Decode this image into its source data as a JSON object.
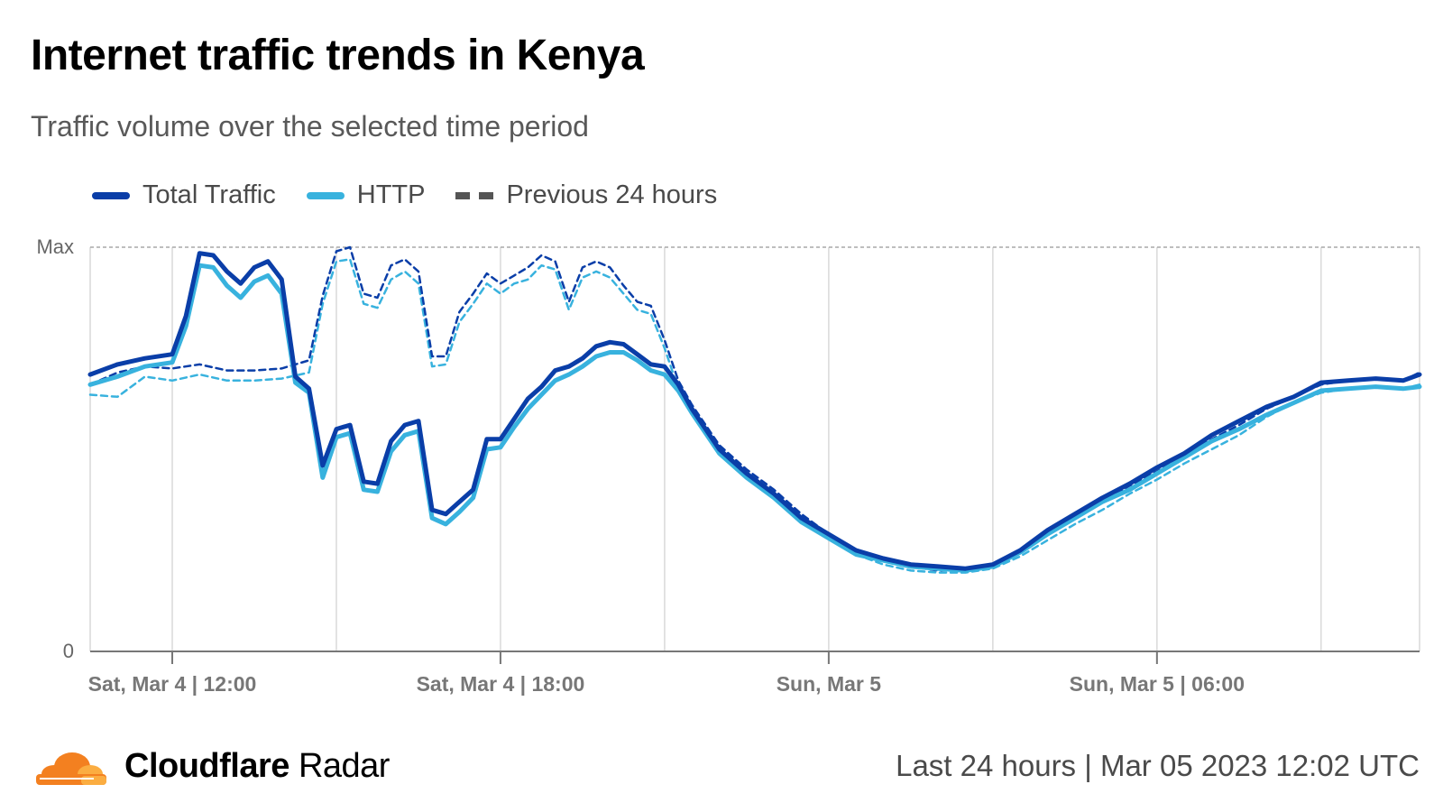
{
  "header": {
    "title": "Internet traffic trends in Kenya",
    "subtitle": "Traffic volume over the selected time period"
  },
  "footer": {
    "brand_bold": "Cloudflare",
    "brand_rest": " Radar",
    "period": "Last 24 hours | Mar 05 2023 12:02 UTC"
  },
  "colors": {
    "total": "#0a3ea8",
    "http": "#38b2de",
    "previous": "#555555",
    "grid": "#d9d9d9",
    "axis": "#777777",
    "logo_dark": "#f38020",
    "logo_light": "#fbad41"
  },
  "chart_data": {
    "type": "line",
    "legend_position": "top-left",
    "grid": true,
    "y_tick_labels": [
      "0",
      "Max"
    ],
    "ylim": [
      0,
      100
    ],
    "x_tick_labels": [
      "Sat, Mar 4 | 12:00",
      "Sat, Mar 4 | 18:00",
      "Sun, Mar 5",
      "Sun, Mar 5 | 06:00"
    ],
    "x_tick_hours": [
      0,
      6,
      12,
      18
    ],
    "xlim": [
      -1.5,
      22.8
    ],
    "series": [
      {
        "name": "Total Traffic",
        "key": "total",
        "hours": [
          -1.5,
          -1,
          -0.5,
          0,
          0.25,
          0.5,
          0.75,
          1,
          1.25,
          1.5,
          1.75,
          2,
          2.25,
          2.5,
          2.75,
          3,
          3.25,
          3.5,
          3.75,
          4,
          4.25,
          4.5,
          4.75,
          5,
          5.25,
          5.5,
          5.75,
          6,
          6.25,
          6.5,
          6.75,
          7,
          7.25,
          7.5,
          7.75,
          8,
          8.25,
          8.5,
          8.75,
          9,
          9.25,
          9.5,
          9.75,
          10,
          10.5,
          11,
          11.5,
          12,
          12.5,
          13,
          13.5,
          14,
          14.5,
          15,
          15.5,
          16,
          16.5,
          17,
          17.5,
          18,
          18.5,
          19,
          19.5,
          20,
          20.5,
          21,
          21.5,
          22,
          22.5,
          22.8
        ],
        "values": [
          68.5,
          71,
          72.5,
          73.5,
          83,
          98.5,
          98,
          94,
          91,
          95,
          96.5,
          92,
          68,
          65,
          46,
          55,
          56,
          42,
          41.5,
          52,
          56,
          57,
          35,
          34,
          37,
          40,
          52.5,
          52.5,
          57.5,
          62.5,
          65.5,
          69.5,
          70.5,
          72.5,
          75.5,
          76.5,
          76,
          73.5,
          71,
          70.5,
          66,
          60,
          55,
          50,
          44,
          39,
          33,
          29,
          25,
          23,
          21.5,
          21,
          20.5,
          21.5,
          25,
          30,
          34,
          38,
          41.5,
          45.5,
          49,
          53.5,
          57,
          60.5,
          63,
          66.5,
          67,
          67.5,
          67,
          68.5
        ]
      },
      {
        "name": "HTTP",
        "key": "http",
        "hours": [
          -1.5,
          -1,
          -0.5,
          0,
          0.25,
          0.5,
          0.75,
          1,
          1.25,
          1.5,
          1.75,
          2,
          2.25,
          2.5,
          2.75,
          3,
          3.25,
          3.5,
          3.75,
          4,
          4.25,
          4.5,
          4.75,
          5,
          5.25,
          5.5,
          5.75,
          6,
          6.25,
          6.5,
          6.75,
          7,
          7.25,
          7.5,
          7.75,
          8,
          8.25,
          8.5,
          8.75,
          9,
          9.25,
          9.5,
          9.75,
          10,
          10.5,
          11,
          11.5,
          12,
          12.5,
          13,
          13.5,
          14,
          14.5,
          15,
          15.5,
          16,
          16.5,
          17,
          17.5,
          18,
          18.5,
          19,
          19.5,
          20,
          20.5,
          21,
          21.5,
          22,
          22.5,
          22.8
        ],
        "values": [
          66,
          68,
          70.5,
          71.5,
          80.5,
          95.5,
          95,
          90.5,
          87.5,
          91.5,
          93,
          88.5,
          66.5,
          64,
          43,
          53,
          54,
          40,
          39.5,
          49.5,
          53.5,
          54.5,
          33,
          31.5,
          34.5,
          38,
          50,
          50.5,
          55.5,
          60,
          63.5,
          67,
          68.5,
          70.5,
          73,
          74,
          74,
          72,
          69.5,
          68.5,
          64.5,
          59,
          54,
          49,
          43,
          38,
          32,
          28,
          24,
          22.5,
          21,
          20.5,
          20,
          21,
          24.5,
          29,
          33,
          37,
          40,
          44,
          48,
          52,
          55,
          58.5,
          61.5,
          64.5,
          65,
          65.5,
          65,
          65.5
        ]
      },
      {
        "name": "Previous 24 hours",
        "key": "prev_total",
        "hours": [
          -1.5,
          -1,
          -0.5,
          0,
          0.5,
          1,
          1.5,
          2,
          2.5,
          2.75,
          3,
          3.25,
          3.5,
          3.75,
          4,
          4.25,
          4.5,
          4.75,
          5,
          5.25,
          5.5,
          5.75,
          6,
          6.25,
          6.5,
          6.75,
          7,
          7.25,
          7.5,
          7.75,
          8,
          8.25,
          8.5,
          8.75,
          9,
          9.25,
          9.5,
          9.75,
          10,
          10.5,
          11,
          11.5,
          12,
          12.5,
          13,
          13.5,
          14,
          14.5,
          15,
          15.5,
          16,
          16.5,
          17,
          17.5,
          18,
          18.5,
          19,
          19.5,
          20,
          20.5,
          21,
          21.5,
          22,
          22.5,
          22.8
        ],
        "values": [
          66,
          69,
          70.5,
          70,
          71,
          69.5,
          69.5,
          70,
          72,
          88,
          99,
          100,
          88.5,
          87.5,
          95.5,
          97,
          94,
          73,
          73,
          84,
          88.5,
          93.5,
          91,
          93,
          95,
          98,
          96.5,
          86.5,
          95,
          96.5,
          95,
          90.5,
          86.5,
          85.5,
          77,
          67,
          61,
          56,
          51,
          45,
          40,
          34,
          29,
          25,
          22.5,
          21,
          20,
          20.5,
          21.5,
          25,
          29,
          33,
          37,
          41,
          44.5,
          48.5,
          52.5,
          56,
          60,
          63,
          66,
          67,
          67.5,
          67,
          69
        ]
      },
      {
        "name": "Previous 24 hours",
        "key": "prev_http",
        "hours": [
          -1.5,
          -1,
          -0.5,
          0,
          0.5,
          1,
          1.5,
          2,
          2.5,
          2.75,
          3,
          3.25,
          3.5,
          3.75,
          4,
          4.25,
          4.5,
          4.75,
          5,
          5.25,
          5.5,
          5.75,
          6,
          6.25,
          6.5,
          6.75,
          7,
          7.25,
          7.5,
          7.75,
          8,
          8.25,
          8.5,
          8.75,
          9,
          9.25,
          9.5,
          9.75,
          10,
          10.5,
          11,
          11.5,
          12,
          12.5,
          13,
          13.5,
          14,
          14.5,
          15,
          15.5,
          16,
          16.5,
          17,
          17.5,
          18,
          18.5,
          19,
          19.5,
          20,
          20.5,
          21,
          21.5,
          22,
          22.5,
          22.8
        ],
        "values": [
          63.5,
          63,
          68,
          67,
          68.5,
          67,
          67,
          67.5,
          69,
          86,
          96.5,
          97,
          86,
          85,
          92,
          94,
          91,
          70.5,
          71,
          81.5,
          86,
          91,
          88.5,
          91,
          92,
          95.5,
          94.5,
          84.5,
          92.5,
          94,
          92.5,
          88.5,
          84.5,
          83.5,
          75,
          65,
          59,
          54,
          49.5,
          43.5,
          38.5,
          32.5,
          28,
          24,
          21.5,
          20,
          19.5,
          19.5,
          20.5,
          23.5,
          27.5,
          31.5,
          35,
          39,
          42.5,
          46.5,
          50,
          53.5,
          58,
          61.5,
          64,
          65,
          65.5,
          65,
          66
        ]
      }
    ]
  }
}
